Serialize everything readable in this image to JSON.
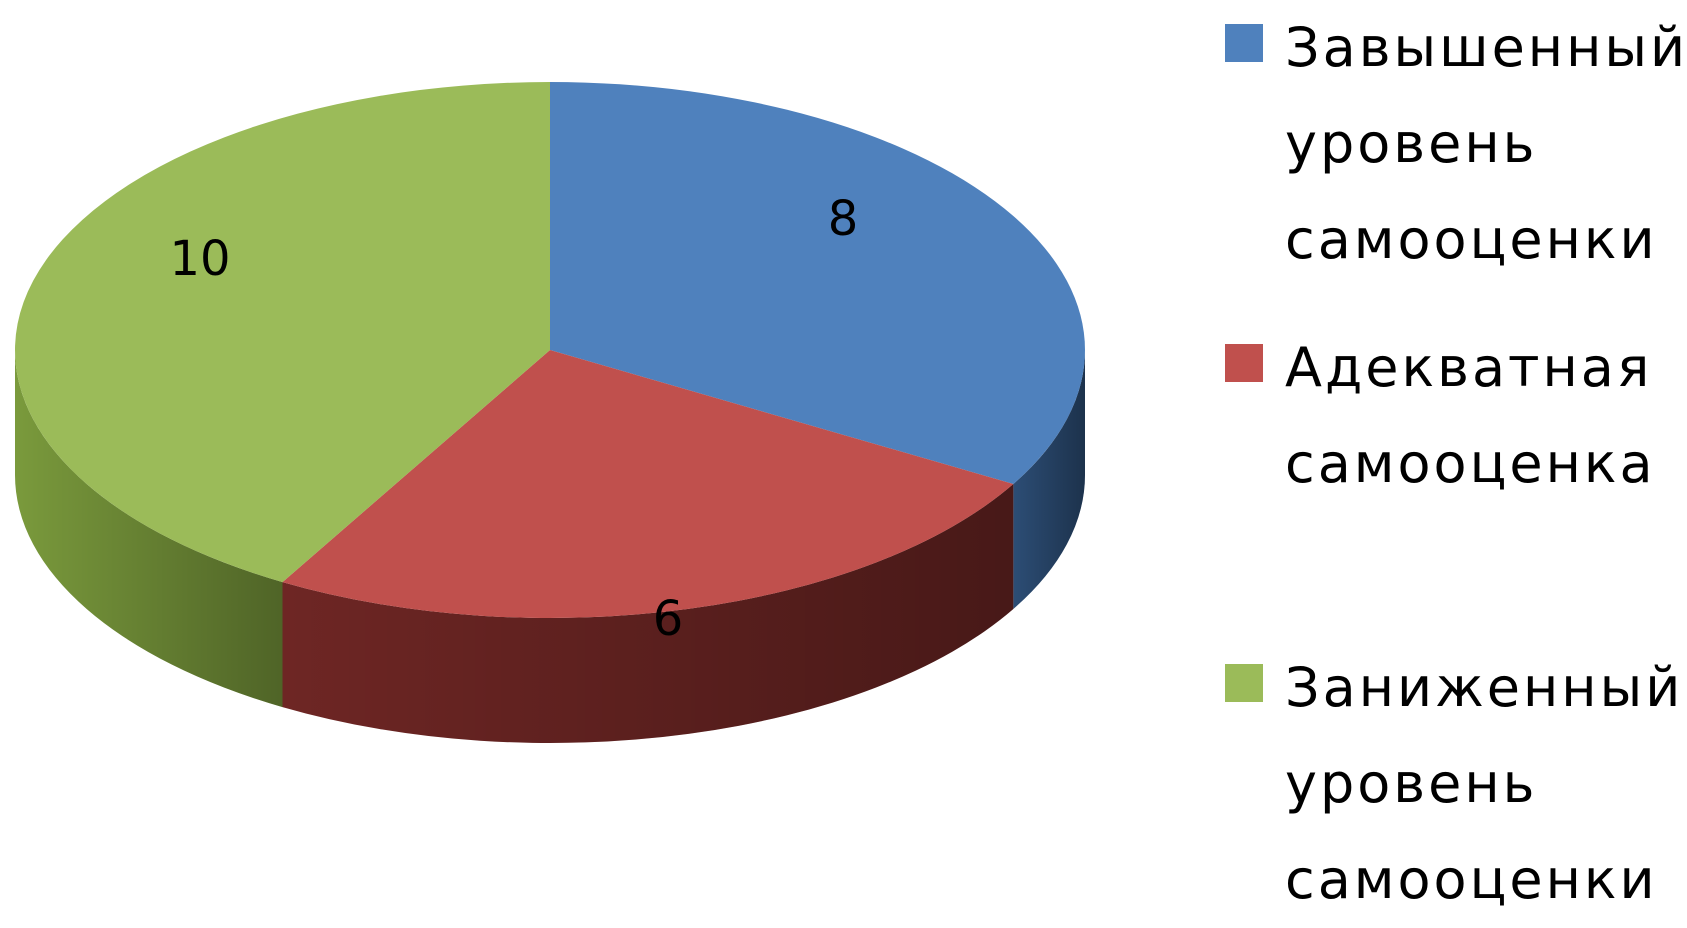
{
  "chart_data": {
    "type": "pie",
    "style": "3d",
    "slices": [
      {
        "label": "Завышенный уровень самооценки",
        "value": 8,
        "color": "#4F81BD",
        "side_color": "#2C4D75",
        "data_label": "8"
      },
      {
        "label": "Адекватная самооценка",
        "value": 6,
        "color": "#C0504D",
        "side_color": "#6E2624",
        "data_label": "6"
      },
      {
        "label": "Заниженный уровень самооценки",
        "value": 10,
        "color": "#9BBB59",
        "side_color": "#7A9A3C",
        "data_label": "10"
      }
    ],
    "legend_position": "right"
  }
}
